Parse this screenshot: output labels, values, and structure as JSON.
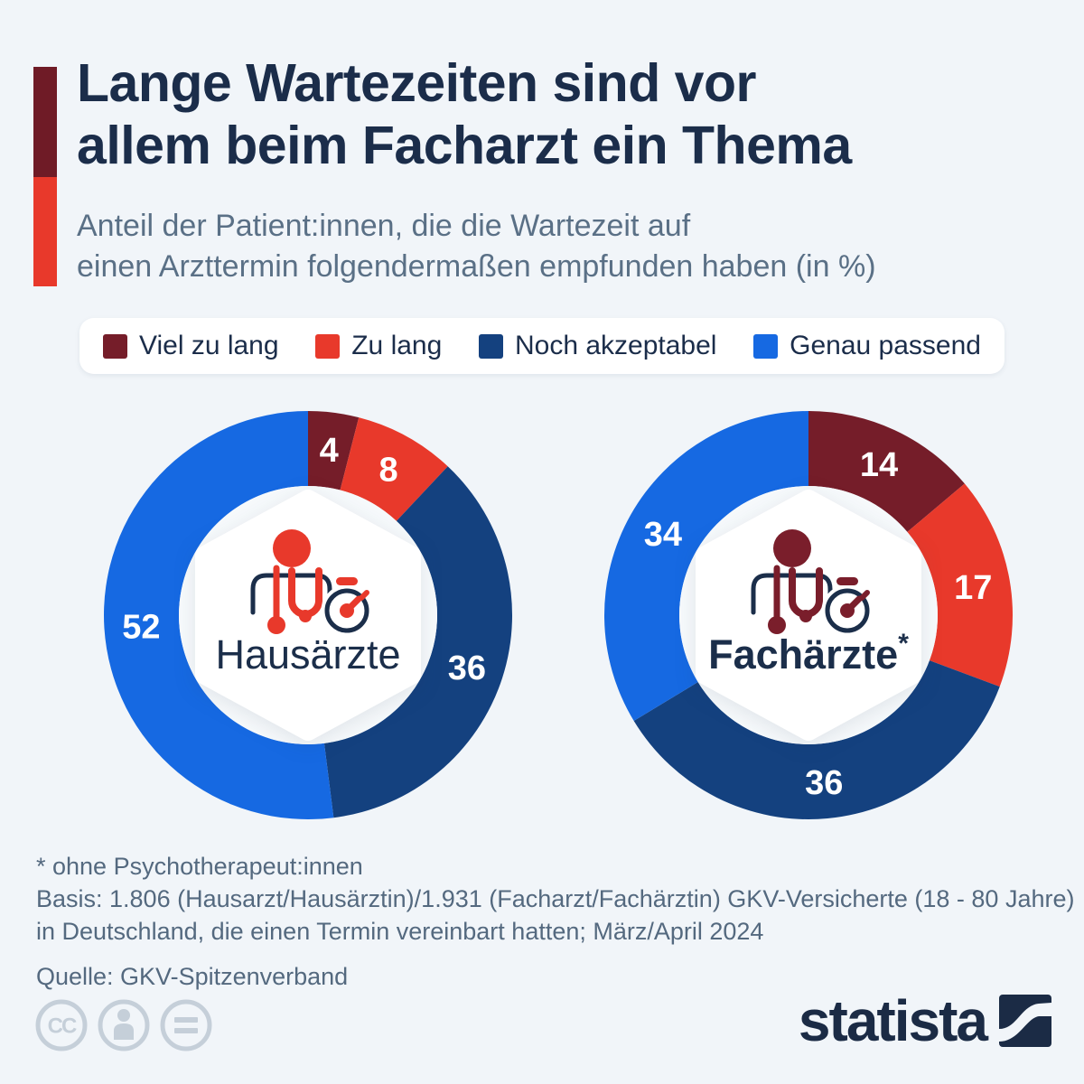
{
  "colors": {
    "background": "#f1f5f9",
    "title": "#1b2d4a",
    "subtitle": "#5a7086",
    "footnote": "#54697f",
    "accent_bar_top": "#6f1b26",
    "accent_bar_bottom": "#e8392b",
    "icon_navy": "#1b2e4a",
    "license_icons": "#c5cfd9",
    "brand": "#1b2b45"
  },
  "header": {
    "title_line1": "Lange Wartezeiten sind vor",
    "title_line2": "allem beim Facharzt ein Thema",
    "subtitle_line1": "Anteil der Patient:innen, die die Wartezeit auf",
    "subtitle_line2": "einen Arzttermin folgendermaßen empfunden haben (in %)"
  },
  "legend": [
    {
      "label": "Viel zu lang",
      "color": "#751d29"
    },
    {
      "label": "Zu lang",
      "color": "#e8392b"
    },
    {
      "label": "Noch akzeptabel",
      "color": "#14417f"
    },
    {
      "label": "Genau passend",
      "color": "#1669e2"
    }
  ],
  "chart_data": {
    "type": "pie",
    "subtype": "donut",
    "unit": "%",
    "title": "Anteil der Patient:innen, die die Wartezeit auf einen Arzttermin folgendermaßen empfunden haben (in %)",
    "categories": [
      "Viel zu lang",
      "Zu lang",
      "Noch akzeptabel",
      "Genau passend"
    ],
    "colors": [
      "#751d29",
      "#e8392b",
      "#14417f",
      "#1669e2"
    ],
    "legend_position": "top",
    "series": [
      {
        "name": "Hausärzte",
        "label_suffix": "",
        "label_bold": false,
        "icon_accent": "#e8392b",
        "values": [
          4,
          8,
          36,
          52
        ]
      },
      {
        "name": "Fachärzte",
        "label_suffix": "*",
        "label_bold": true,
        "icon_accent": "#7a1e2b",
        "values": [
          14,
          17,
          36,
          34
        ]
      }
    ]
  },
  "footnotes": {
    "asterisk_note": "* ohne Psychotherapeut:innen",
    "basis_line1": "Basis: 1.806 (Hausarzt/Hausärztin)/1.931 (Facharzt/Fachärztin) GKV-Versicherte (18 - 80 Jahre)",
    "basis_line2": "in Deutschland, die einen Termin vereinbart hatten; März/April 2024",
    "source": "Quelle: GKV-Spitzenverband"
  },
  "footer": {
    "brand_name": "statista",
    "license_icons": [
      "creative-commons",
      "attribution",
      "no-derivatives"
    ]
  }
}
